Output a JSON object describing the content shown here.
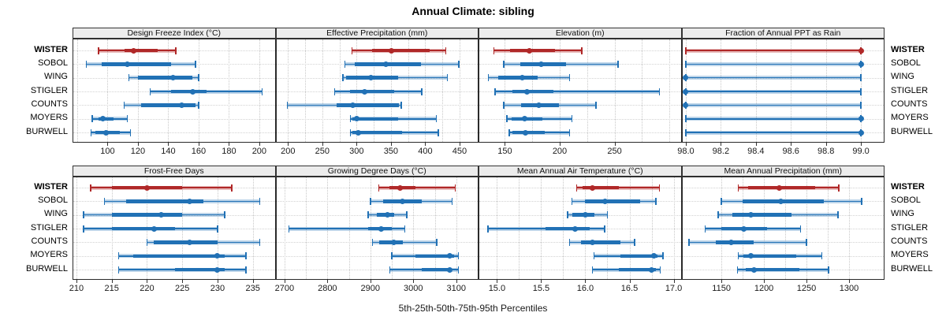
{
  "title": "Annual Climate: sibling",
  "caption": "5th-25th-50th-75th-95th Percentiles",
  "percentiles": [
    "5th",
    "25th",
    "50th",
    "75th",
    "95th"
  ],
  "highlight_series": "WISTER",
  "series": [
    "WISTER",
    "SOBOL",
    "WING",
    "STIGLER",
    "COUNTS",
    "MOYERS",
    "BURWELL"
  ],
  "colors": {
    "highlight": "#b02828",
    "highlight_band": "rgba(178,34,34,0.30)",
    "normal": "#2171b5",
    "normal_band": "rgba(33,113,181,0.30)",
    "grid": "#c8c8c8",
    "strip_bg": "#ececec",
    "panel_border": "#2a2a2a"
  },
  "chart_data": {
    "type": "segplot-grid",
    "grid": {
      "rows": 2,
      "cols": 4
    },
    "value_order": [
      "p5",
      "p25",
      "p50",
      "p75",
      "p95"
    ],
    "panels": [
      {
        "title": "Design Freeze Index (°C)",
        "xlim": [
          77.4,
          210.2
        ],
        "tick_labels": [
          "100",
          "120",
          "140",
          "160",
          "180",
          "200"
        ],
        "tick_values": [
          100,
          120,
          140,
          160,
          180,
          200
        ],
        "minor_grid": false,
        "values": [
          [
            94,
            111,
            117,
            133,
            145
          ],
          [
            86,
            96,
            113,
            142,
            158
          ],
          [
            114,
            120,
            143,
            156,
            160
          ],
          [
            128,
            142,
            156,
            165,
            202
          ],
          [
            111,
            122,
            149,
            158,
            160
          ],
          [
            90,
            94,
            97,
            104,
            113
          ],
          [
            89,
            92,
            99,
            108,
            115
          ]
        ]
      },
      {
        "title": "Effective Precipitation (mm)",
        "xlim": [
          183,
          476.5
        ],
        "tick_labels": [
          "200",
          "250",
          "300",
          "350",
          "400",
          "450"
        ],
        "tick_values": [
          200,
          250,
          300,
          350,
          400,
          450
        ],
        "minor_grid": true,
        "values": [
          [
            293,
            322,
            351,
            407,
            430
          ],
          [
            283,
            297,
            343,
            394,
            449
          ],
          [
            280,
            285,
            321,
            360,
            432
          ],
          [
            268,
            290,
            312,
            355,
            395
          ],
          [
            199,
            271,
            294,
            362,
            365
          ],
          [
            291,
            294,
            300,
            360,
            416
          ],
          [
            291,
            294,
            302,
            366,
            419
          ]
        ]
      },
      {
        "title": "Elevation (m)",
        "xlim": [
          126.7,
          310.3
        ],
        "tick_labels": [
          "150",
          "200",
          "250"
        ],
        "tick_values": [
          150,
          200,
          250
        ],
        "minor_grid": true,
        "values": [
          [
            140,
            155,
            172,
            196,
            220
          ],
          [
            149,
            164,
            183,
            206,
            253
          ],
          [
            135,
            144,
            166,
            180,
            209
          ],
          [
            141,
            157,
            170,
            194,
            291
          ],
          [
            149,
            165,
            181,
            199,
            233
          ],
          [
            152,
            156,
            168,
            184,
            211
          ],
          [
            154,
            157,
            169,
            186,
            209
          ]
        ]
      },
      {
        "title": "Fraction of Annual PPT as Rain",
        "xlim": [
          97.98,
          99.13
        ],
        "tick_labels": [
          "98.0",
          "98.2",
          "98.4",
          "98.6",
          "98.8",
          "99.0"
        ],
        "tick_values": [
          98.0,
          98.2,
          98.4,
          98.6,
          98.8,
          99.0
        ],
        "minor_grid": false,
        "values": [
          [
            98.0,
            99.0,
            99.0,
            99.0,
            99.0
          ],
          [
            98.0,
            99.0,
            99.0,
            99.0,
            99.0
          ],
          [
            98.0,
            98.0,
            98.0,
            98.0,
            99.0
          ],
          [
            98.0,
            98.0,
            98.0,
            98.0,
            99.0
          ],
          [
            98.0,
            98.0,
            98.0,
            98.0,
            99.0
          ],
          [
            98.0,
            99.0,
            99.0,
            99.0,
            99.0
          ],
          [
            98.0,
            99.0,
            99.0,
            99.0,
            99.0
          ]
        ]
      },
      {
        "title": "Frost-Free Days",
        "xlim": [
          209.56,
          238.1
        ],
        "tick_labels": [
          "210",
          "215",
          "220",
          "225",
          "230",
          "235"
        ],
        "tick_values": [
          210,
          215,
          220,
          225,
          230,
          235
        ],
        "minor_grid": false,
        "values": [
          [
            212,
            215,
            220,
            225,
            232
          ],
          [
            214,
            217,
            226,
            228,
            236
          ],
          [
            211,
            215,
            222,
            225,
            231
          ],
          [
            211,
            215,
            221,
            224,
            230
          ],
          [
            220,
            221,
            226,
            230,
            236
          ],
          [
            216,
            218,
            230,
            231,
            234
          ],
          [
            216,
            224,
            230,
            231,
            234
          ]
        ]
      },
      {
        "title": "Growing Degree Days (°C)",
        "xlim": [
          2681,
          3150
        ],
        "tick_labels": [
          "2700",
          "2800",
          "2900",
          "3000",
          "3100"
        ],
        "tick_values": [
          2700,
          2800,
          2900,
          3000,
          3100
        ],
        "minor_grid": true,
        "values": [
          [
            2920,
            2945,
            2970,
            3005,
            3098
          ],
          [
            2900,
            2930,
            2975,
            3020,
            3090
          ],
          [
            2895,
            2915,
            2940,
            2955,
            2985
          ],
          [
            2710,
            2895,
            2925,
            2950,
            2980
          ],
          [
            2905,
            2920,
            2955,
            2975,
            3055
          ],
          [
            2950,
            3005,
            3085,
            3095,
            3105
          ],
          [
            2945,
            3020,
            3085,
            3090,
            3105
          ]
        ]
      },
      {
        "title": "Mean Annual Air Temperature (°C)",
        "xlim": [
          14.8,
          17.08
        ],
        "tick_labels": [
          "15.0",
          "15.5",
          "16.0",
          "16.5",
          "17.0"
        ],
        "tick_values": [
          15.0,
          15.5,
          16.0,
          16.5,
          17.0
        ],
        "minor_grid": true,
        "values": [
          [
            15.9,
            15.97,
            16.08,
            16.38,
            16.84
          ],
          [
            15.85,
            16.0,
            16.22,
            16.62,
            16.8
          ],
          [
            15.8,
            15.85,
            16.0,
            16.1,
            16.25
          ],
          [
            14.9,
            15.55,
            15.88,
            16.05,
            16.22
          ],
          [
            15.82,
            15.95,
            16.08,
            16.4,
            16.56
          ],
          [
            16.1,
            16.4,
            16.78,
            16.82,
            16.88
          ],
          [
            16.08,
            16.38,
            16.75,
            16.8,
            16.85
          ]
        ]
      },
      {
        "title": "Mean Annual Precipitation (mm)",
        "xlim": [
          1104,
          1340.8
        ],
        "tick_labels": [
          "1150",
          "1200",
          "1250",
          "1300"
        ],
        "tick_values": [
          1150,
          1200,
          1250,
          1300
        ],
        "minor_grid": true,
        "values": [
          [
            1170,
            1181,
            1218,
            1260,
            1288
          ],
          [
            1150,
            1175,
            1220,
            1270,
            1315
          ],
          [
            1146,
            1163,
            1185,
            1232,
            1287
          ],
          [
            1131,
            1150,
            1176,
            1204,
            1243
          ],
          [
            1112,
            1143,
            1161,
            1188,
            1250
          ],
          [
            1170,
            1176,
            1185,
            1238,
            1268
          ],
          [
            1169,
            1179,
            1188,
            1242,
            1276
          ]
        ]
      }
    ]
  }
}
